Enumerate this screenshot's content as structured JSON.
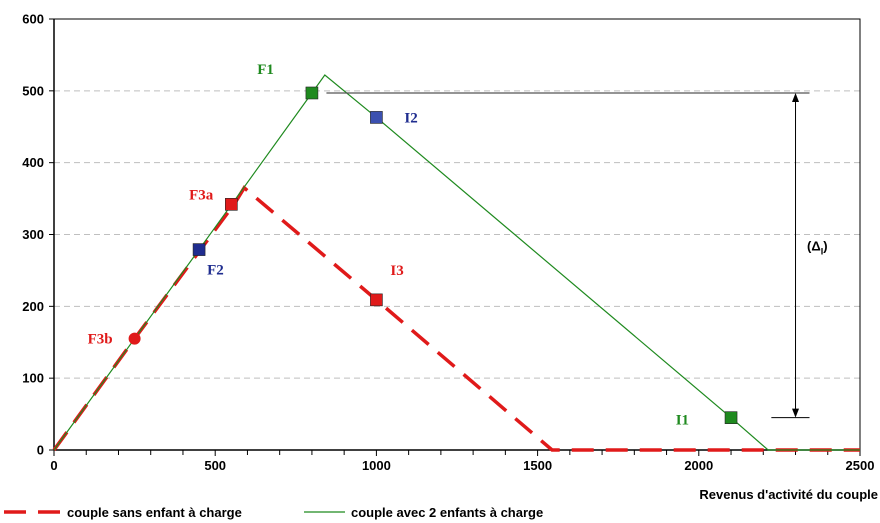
{
  "chart_data": {
    "type": "line",
    "title": "",
    "xlabel": "Revenus d'activité du couple",
    "ylabel": "",
    "xlim": [
      0,
      2500
    ],
    "ylim": [
      0,
      600
    ],
    "x_ticks": [
      "0",
      "500",
      "1000",
      "1500",
      "2000",
      "2500"
    ],
    "y_ticks": [
      "0",
      "100",
      "200",
      "300",
      "400",
      "500",
      "600"
    ],
    "x_minor_step": 100,
    "grid": "horizontal dashed",
    "legend_position": "bottom",
    "series": [
      {
        "name": "couple sans enfant à charge",
        "color": "#e01a1a",
        "style": "dashed",
        "points": [
          [
            0,
            0
          ],
          [
            250,
            155
          ],
          [
            560,
            343
          ],
          [
            590,
            365
          ],
          [
            1000,
            209
          ],
          [
            1545,
            0
          ],
          [
            2500,
            0
          ]
        ]
      },
      {
        "name": "couple avec 2 enfants à charge",
        "color": "#1f8a1f",
        "style": "solid",
        "points": [
          [
            0,
            0
          ],
          [
            450,
            279
          ],
          [
            800,
            497
          ],
          [
            840,
            522
          ],
          [
            1000,
            463
          ],
          [
            2100,
            45
          ],
          [
            2215,
            0
          ],
          [
            2500,
            0
          ]
        ]
      }
    ],
    "markers": [
      {
        "label": "F3b",
        "x": 250,
        "y": 155,
        "shape": "circle",
        "color": "#e01a1a"
      },
      {
        "label": "F3a",
        "x": 550,
        "y": 342,
        "shape": "square",
        "color": "#e01a1a"
      },
      {
        "label": "I3",
        "x": 1000,
        "y": 209,
        "shape": "square",
        "color": "#e01a1a"
      },
      {
        "label": "F2",
        "x": 450,
        "y": 279,
        "shape": "square",
        "color": "#1f2d8f"
      },
      {
        "label": "I2",
        "x": 1000,
        "y": 463,
        "shape": "square",
        "color": "#3b50b0"
      },
      {
        "label": "F1",
        "x": 800,
        "y": 497,
        "shape": "square",
        "color": "#1f8a1f"
      },
      {
        "label": "I1",
        "x": 2100,
        "y": 45,
        "shape": "square",
        "color": "#1f8a1f"
      }
    ],
    "annotation": {
      "text": "(Δ",
      "sub": "I",
      "close": ")",
      "from_y": 45,
      "to_y": 497,
      "x": 2300
    }
  }
}
